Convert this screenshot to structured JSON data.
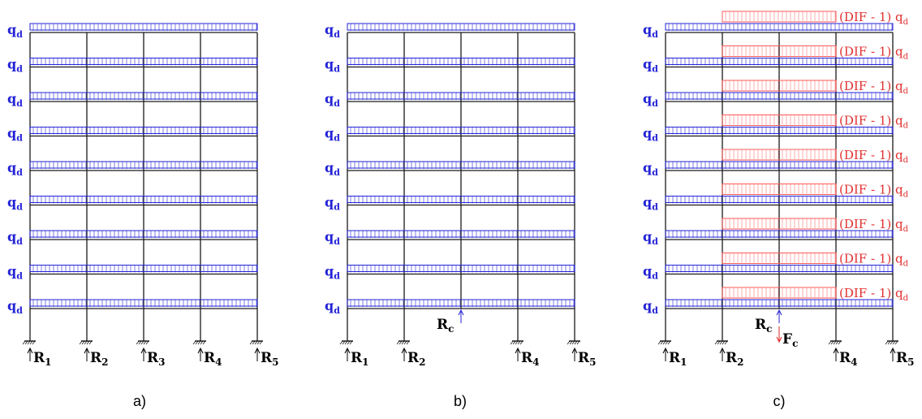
{
  "colors": {
    "frame": "#1a1a1a",
    "load": "#2323d6",
    "load_text": "#2323d6",
    "dif_load": "#ff5a5a",
    "dif_text": "#e03030",
    "Fc": "#e02020",
    "reaction": "#000000"
  },
  "common": {
    "q_main": "q",
    "q_sub": "d",
    "R_main": "R",
    "Rc_main": "R",
    "Rc_sub": "c",
    "Fc_main": "F",
    "Fc_sub": "c",
    "dif_prefix": "(DIF - 1) ",
    "dif_q_main": "q",
    "dif_q_sub": "d"
  },
  "panels": [
    {
      "caption": "a)",
      "floors": 9,
      "removed_column": null,
      "reactions": [
        "1",
        "2",
        "3",
        "4",
        "5"
      ],
      "show_Rc": false,
      "show_Fc": false,
      "dif_loads": false
    },
    {
      "caption": "b)",
      "floors": 9,
      "removed_column": 3,
      "reactions": [
        "1",
        "2",
        null,
        "4",
        "5"
      ],
      "show_Rc": true,
      "show_Fc": false,
      "dif_loads": false
    },
    {
      "caption": "c)",
      "floors": 9,
      "removed_column": 3,
      "reactions": [
        "1",
        "2",
        null,
        "4",
        "5"
      ],
      "show_Rc": true,
      "show_Fc": true,
      "dif_loads": true
    }
  ]
}
